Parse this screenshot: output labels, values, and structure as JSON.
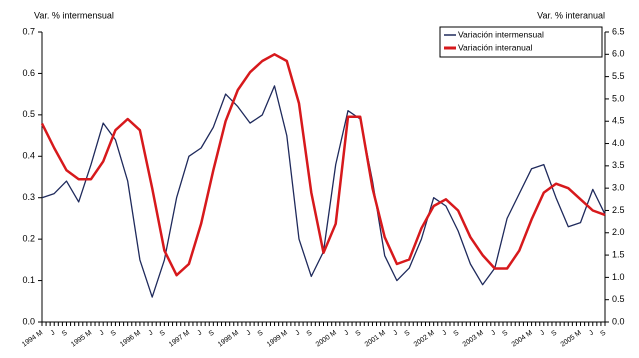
{
  "chart_data": {
    "type": "line",
    "y_label": "Var. %  intermensual",
    "y2_label": "Var. % interanual",
    "categories": [
      "1994 M",
      "J",
      "S",
      null,
      "1995 M",
      "J",
      "S",
      null,
      "1996 M",
      "J",
      "S",
      null,
      "1997 M",
      "J",
      "S",
      null,
      "1998 M",
      "J",
      "S",
      null,
      "1999 M",
      "J",
      "S",
      null,
      "2000 M",
      "J",
      "S",
      null,
      "2001 M",
      "J",
      "S",
      null,
      "2002 M",
      "J",
      "S",
      null,
      "2003 M",
      "J",
      "S",
      null,
      "2004 M",
      "J",
      "S",
      null,
      "2005 M",
      "J",
      "S"
    ],
    "series": [
      {
        "name": "Variación intermensual",
        "color": "#1f2a5c",
        "axis": "y",
        "values": [
          0.3,
          0.31,
          0.34,
          0.29,
          0.38,
          0.48,
          0.44,
          0.34,
          0.15,
          0.06,
          0.15,
          0.3,
          0.4,
          0.42,
          0.47,
          0.55,
          0.52,
          0.48,
          0.5,
          0.57,
          0.45,
          0.2,
          0.11,
          0.17,
          0.38,
          0.51,
          0.49,
          0.34,
          0.16,
          0.1,
          0.13,
          0.2,
          0.3,
          0.28,
          0.22,
          0.14,
          0.09,
          0.13,
          0.25,
          0.31,
          0.37,
          0.38,
          0.3,
          0.23,
          0.24,
          0.32,
          0.26
        ]
      },
      {
        "name": "Variación interanual",
        "color": "#d7191c",
        "axis": "y2",
        "values": [
          4.45,
          3.9,
          3.4,
          3.2,
          3.2,
          3.6,
          4.3,
          4.55,
          4.3,
          3.0,
          1.6,
          1.05,
          1.3,
          2.2,
          3.4,
          4.5,
          5.2,
          5.6,
          5.85,
          6.0,
          5.85,
          4.9,
          2.9,
          1.55,
          2.2,
          4.6,
          4.6,
          3.0,
          1.9,
          1.3,
          1.4,
          2.1,
          2.6,
          2.75,
          2.5,
          1.9,
          1.5,
          1.2,
          1.2,
          1.6,
          2.3,
          2.9,
          3.1,
          3.0,
          2.75,
          2.5,
          2.4
        ]
      }
    ],
    "ylim": [
      0,
      0.7
    ],
    "yticks": [
      {
        "value": 0,
        "label": "0.0"
      },
      0.1,
      0.2,
      0.3,
      0.4,
      0.5,
      0.6,
      0.7
    ],
    "y2lim": [
      0,
      6.5
    ],
    "y2ticks": [
      {
        "value": 0,
        "label": "0.0"
      },
      0.5,
      {
        "value": 1,
        "label": "1.0"
      },
      1.5,
      {
        "value": 2,
        "label": "2.0"
      },
      2.5,
      {
        "value": 3,
        "label": "3.0"
      },
      3.5,
      {
        "value": 4,
        "label": "4.0"
      },
      4.5,
      {
        "value": 5,
        "label": "5.0"
      },
      5.5,
      {
        "value": 6,
        "label": "6.0"
      },
      6.5
    ],
    "legend": "top-right"
  }
}
